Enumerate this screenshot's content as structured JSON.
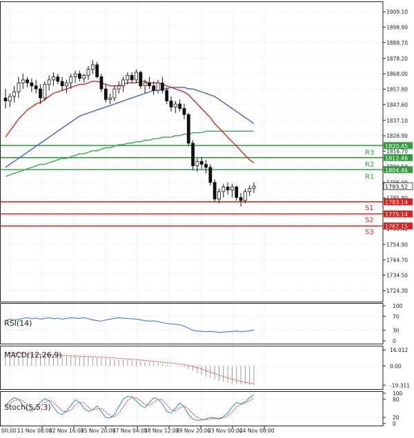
{
  "chart_data": {
    "type": "candlestick",
    "title": "",
    "x_labels": [
      "11 Nov 08:00",
      "12 Nov 16:00",
      "15 Nov 20:00",
      "17 Nov 04:00",
      "18 Nov 12:00",
      "19 Nov 20:00",
      "23 Nov 00:00",
      "24 Nov 08:00"
    ],
    "x_label_first": "00:00",
    "price_axis": {
      "ylim": [
        1717.0,
        1916.0
      ],
      "ticks": [
        "1909.10",
        "1898.90",
        "1888.70",
        "1878.20",
        "1868.00",
        "1857.80",
        "1847.60",
        "1837.10",
        "1826.90",
        "1816.70",
        "1806.50",
        "1796.00",
        "1785.80",
        "1775.60",
        "1765.40",
        "1754.90",
        "1744.70",
        "1734.50",
        "1724.30"
      ],
      "current_price": "1793.52",
      "candles_ohlc": [
        [
          1852,
          1858,
          1845,
          1850
        ],
        [
          1850,
          1855,
          1846,
          1853
        ],
        [
          1853,
          1860,
          1849,
          1856
        ],
        [
          1856,
          1866,
          1852,
          1862
        ],
        [
          1862,
          1868,
          1858,
          1864
        ],
        [
          1864,
          1866,
          1859,
          1862
        ],
        [
          1862,
          1865,
          1856,
          1860
        ],
        [
          1860,
          1864,
          1855,
          1858
        ],
        [
          1858,
          1861,
          1848,
          1852
        ],
        [
          1852,
          1863,
          1850,
          1861
        ],
        [
          1861,
          1867,
          1857,
          1864
        ],
        [
          1864,
          1869,
          1860,
          1866
        ],
        [
          1866,
          1868,
          1861,
          1863
        ],
        [
          1863,
          1866,
          1857,
          1860
        ],
        [
          1860,
          1864,
          1855,
          1862
        ],
        [
          1862,
          1868,
          1858,
          1866
        ],
        [
          1866,
          1870,
          1862,
          1868
        ],
        [
          1868,
          1870,
          1863,
          1865
        ],
        [
          1865,
          1868,
          1862,
          1867
        ],
        [
          1867,
          1873,
          1864,
          1871
        ],
        [
          1871,
          1877,
          1868,
          1874
        ],
        [
          1874,
          1876,
          1865,
          1866
        ],
        [
          1866,
          1868,
          1856,
          1858
        ],
        [
          1858,
          1861,
          1849,
          1851
        ],
        [
          1851,
          1855,
          1848,
          1852
        ],
        [
          1852,
          1860,
          1850,
          1858
        ],
        [
          1858,
          1863,
          1855,
          1860
        ],
        [
          1860,
          1866,
          1856,
          1864
        ],
        [
          1864,
          1869,
          1861,
          1867
        ],
        [
          1867,
          1869,
          1862,
          1864
        ],
        [
          1864,
          1871,
          1862,
          1869
        ],
        [
          1869,
          1870,
          1858,
          1860
        ],
        [
          1860,
          1864,
          1855,
          1862
        ],
        [
          1862,
          1866,
          1858,
          1860
        ],
        [
          1860,
          1863,
          1854,
          1857
        ],
        [
          1857,
          1864,
          1855,
          1862
        ],
        [
          1862,
          1866,
          1855,
          1857
        ],
        [
          1857,
          1859,
          1848,
          1850
        ],
        [
          1850,
          1853,
          1843,
          1846
        ],
        [
          1846,
          1850,
          1842,
          1848
        ],
        [
          1848,
          1851,
          1843,
          1845
        ],
        [
          1845,
          1848,
          1838,
          1841
        ],
        [
          1841,
          1842,
          1820,
          1822
        ],
        [
          1822,
          1824,
          1804,
          1807
        ],
        [
          1807,
          1812,
          1803,
          1810
        ],
        [
          1810,
          1813,
          1805,
          1808
        ],
        [
          1808,
          1811,
          1802,
          1806
        ],
        [
          1806,
          1808,
          1794,
          1796
        ],
        [
          1796,
          1798,
          1783,
          1785
        ],
        [
          1785,
          1792,
          1782,
          1790
        ],
        [
          1790,
          1795,
          1786,
          1793
        ],
        [
          1793,
          1796,
          1788,
          1791
        ],
        [
          1791,
          1795,
          1786,
          1793
        ],
        [
          1793,
          1794,
          1784,
          1786
        ],
        [
          1786,
          1789,
          1780,
          1784
        ],
        [
          1784,
          1792,
          1782,
          1790
        ],
        [
          1790,
          1794,
          1787,
          1792
        ],
        [
          1792,
          1796,
          1789,
          1793.52
        ]
      ],
      "sma_fast_color": "#e0201b",
      "sma_fast": [
        1826,
        1830,
        1834,
        1838,
        1841,
        1844,
        1846,
        1848,
        1849,
        1851,
        1853,
        1855,
        1856,
        1857,
        1858,
        1859,
        1860,
        1861,
        1861,
        1862,
        1863,
        1863,
        1862,
        1861,
        1860,
        1860,
        1860,
        1861,
        1862,
        1862,
        1862,
        1863,
        1863,
        1862,
        1862,
        1862,
        1861,
        1860,
        1859,
        1858,
        1857,
        1856,
        1854,
        1851,
        1848,
        1845,
        1842,
        1839,
        1835,
        1832,
        1829,
        1826,
        1823,
        1820,
        1817,
        1814,
        1811,
        1809
      ],
      "sma_mid_color": "#3a5fc8",
      "sma_mid": [
        1806,
        1808,
        1810,
        1812,
        1814,
        1816,
        1818,
        1820,
        1822,
        1824,
        1826,
        1828,
        1830,
        1832,
        1834,
        1836,
        1838,
        1840,
        1841,
        1842,
        1843,
        1844,
        1845,
        1846,
        1847,
        1848,
        1849,
        1850,
        1851,
        1852,
        1853,
        1854,
        1855,
        1856,
        1857,
        1857,
        1858,
        1858,
        1859,
        1859,
        1859,
        1859,
        1858,
        1858,
        1857,
        1856,
        1855,
        1854,
        1853,
        1851,
        1849,
        1847,
        1845,
        1843,
        1841,
        1839,
        1837,
        1835
      ],
      "sma_slow_color": "#2fa84f",
      "sma_slow": [
        1800,
        1801,
        1802,
        1803,
        1804,
        1805,
        1806,
        1807,
        1808,
        1808,
        1809,
        1810,
        1811,
        1812,
        1812,
        1813,
        1814,
        1815,
        1815,
        1816,
        1817,
        1817,
        1818,
        1819,
        1819,
        1820,
        1821,
        1821,
        1822,
        1822,
        1823,
        1823,
        1824,
        1824,
        1825,
        1825,
        1826,
        1826,
        1826,
        1827,
        1827,
        1828,
        1828,
        1829,
        1829,
        1829,
        1830,
        1830,
        1830,
        1830,
        1830,
        1830,
        1830,
        1830,
        1830,
        1830,
        1830,
        1830
      ],
      "resistance": [
        {
          "label": "R3",
          "value": 1820.45,
          "tag": "1820.45"
        },
        {
          "label": "R2",
          "value": 1812.46,
          "tag": "1812.46"
        },
        {
          "label": "R1",
          "value": 1804.46,
          "tag": "1804.46"
        }
      ],
      "support": [
        {
          "label": "S1",
          "value": 1783.14,
          "tag": "1783.14"
        },
        {
          "label": "S2",
          "value": 1775.14,
          "tag": "1775.14"
        },
        {
          "label": "S3",
          "value": 1767.15,
          "tag": "1767.15"
        }
      ],
      "resistance_color": "#2e9e3c",
      "support_color": "#e0201b"
    },
    "rsi": {
      "label": "RSI(14)",
      "ticks": [
        "100",
        "70",
        "30",
        "0"
      ],
      "ylim": [
        0,
        100
      ],
      "color": "#3a7bd5",
      "values": [
        58,
        62,
        60,
        61,
        64,
        66,
        63,
        65,
        62,
        64,
        66,
        63,
        65,
        62,
        64,
        66,
        65,
        64,
        66,
        63,
        60,
        58,
        56,
        60,
        62,
        64,
        66,
        65,
        64,
        63,
        62,
        60,
        58,
        56,
        57,
        55,
        52,
        50,
        48,
        47,
        46,
        42,
        36,
        30,
        28,
        27,
        26,
        27,
        26,
        24,
        25,
        26,
        27,
        28,
        26,
        27,
        29,
        31
      ]
    },
    "macd": {
      "label": "MACD(12,26,9)",
      "ticks": [
        "16.012",
        "0.00",
        "-19.311"
      ],
      "ylim": [
        -20.5,
        17.5
      ],
      "histogram_color": "#9a9a9a",
      "signal_color": "#e0201b",
      "histogram": [
        10,
        10.5,
        11,
        11,
        11.5,
        11.5,
        12,
        12,
        12,
        11.5,
        11.5,
        11,
        11,
        10.5,
        10.5,
        10,
        10,
        9.5,
        9.5,
        9,
        9,
        8.5,
        8,
        7.5,
        7,
        6.5,
        6,
        6,
        5.5,
        5,
        5,
        4.5,
        4,
        3.5,
        3,
        2.5,
        2,
        1.5,
        1,
        0.5,
        0,
        -1,
        -3,
        -5,
        -7,
        -9,
        -10.5,
        -12,
        -13.5,
        -15,
        -16,
        -17,
        -17.5,
        -18,
        -18.3,
        -18.6,
        -18.8,
        -19
      ],
      "signal": [
        13,
        13,
        12.8,
        12.6,
        12.4,
        12.2,
        12,
        11.8,
        11.6,
        11.4,
        11.2,
        11,
        10.8,
        10.6,
        10.4,
        10.2,
        10,
        9.8,
        9.6,
        9.4,
        9.2,
        9,
        8.8,
        8.5,
        8.2,
        7.9,
        7.6,
        7.3,
        7,
        6.6,
        6.2,
        5.8,
        5.4,
        5,
        4.6,
        4.2,
        3.8,
        3.3,
        2.8,
        2.3,
        1.8,
        1.2,
        0.5,
        -0.5,
        -1.8,
        -3.2,
        -4.7,
        -6.2,
        -7.7,
        -9.2,
        -10.6,
        -12,
        -13.3,
        -14.5,
        -15.6,
        -16.5,
        -17.2,
        -17.8
      ]
    },
    "stoch": {
      "label": "Stoch(5,5,3)",
      "ticks": [
        "100",
        "80",
        "20",
        "0"
      ],
      "ylim": [
        0,
        100
      ],
      "k_color": "#2a9dc0",
      "d_color": "#e0201b",
      "k": [
        60,
        75,
        85,
        80,
        60,
        45,
        40,
        55,
        70,
        82,
        75,
        55,
        35,
        30,
        42,
        60,
        78,
        70,
        50,
        40,
        45,
        58,
        40,
        20,
        18,
        30,
        55,
        80,
        90,
        88,
        75,
        60,
        52,
        70,
        85,
        80,
        65,
        40,
        35,
        50,
        68,
        55,
        30,
        15,
        10,
        12,
        15,
        20,
        18,
        15,
        22,
        35,
        55,
        70,
        65,
        72,
        85,
        95
      ],
      "d": [
        55,
        65,
        75,
        80,
        75,
        62,
        50,
        48,
        58,
        70,
        76,
        70,
        55,
        42,
        38,
        45,
        60,
        70,
        68,
        55,
        45,
        48,
        50,
        38,
        25,
        22,
        35,
        55,
        75,
        85,
        85,
        75,
        62,
        60,
        70,
        80,
        78,
        62,
        45,
        42,
        52,
        58,
        48,
        32,
        20,
        14,
        13,
        15,
        17,
        18,
        18,
        25,
        38,
        55,
        63,
        68,
        75,
        85
      ]
    }
  }
}
